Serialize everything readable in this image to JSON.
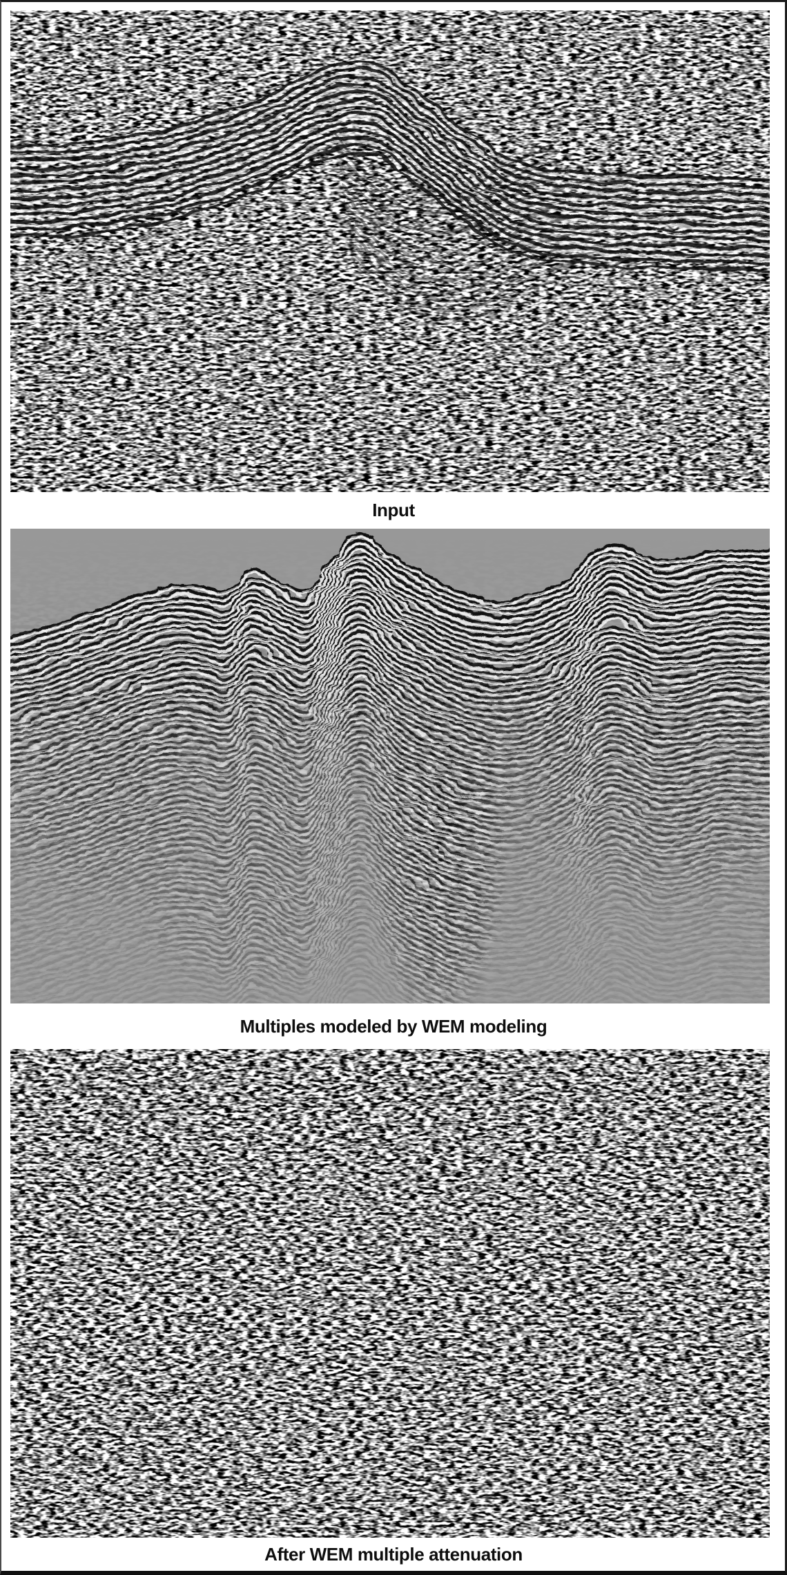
{
  "figure": {
    "panels": [
      {
        "id": "input",
        "caption": "Input"
      },
      {
        "id": "multiples",
        "caption": "Multiples modeled by WEM modeling"
      },
      {
        "id": "attenuated",
        "caption": "After WEM multiple attenuation"
      }
    ],
    "colors": {
      "background": "#ffffff",
      "frame": "#1b1b1b",
      "seismic_flat_gray": "#989898",
      "caption_text": "#0e0e0e"
    }
  }
}
